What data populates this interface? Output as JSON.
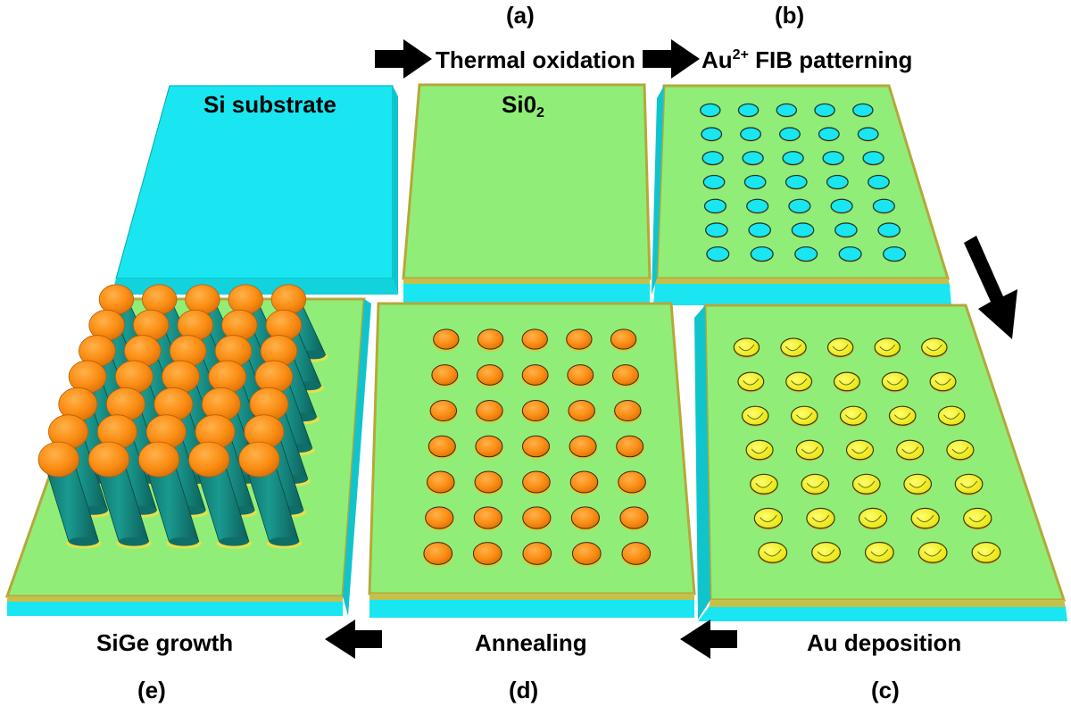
{
  "labels": {
    "step_a": "(a)",
    "step_b": "(b)",
    "step_c": "(c)",
    "step_d": "(d)",
    "step_e": "(e)",
    "thermal_oxidation": "Thermal oxidation",
    "fib_prefix": "Au",
    "fib_sup": "2+",
    "fib_suffix": " FIB patterning",
    "au_deposition": "Au deposition",
    "annealing": "Annealing",
    "sige_growth": "SiGe growth",
    "si_substrate": "Si substrate",
    "sio2_prefix": "Si0",
    "sio2_sub": "2"
  },
  "grid": {
    "rows": 7,
    "cols": 5
  },
  "colors": {
    "substrate": "#19e6f0",
    "substrate_side": "#10c4cc",
    "oxide": "#90ee78",
    "oxide_edge": "#b5a83a",
    "gold": "#f2f212",
    "catalyst": "#fb8c12",
    "nanowire": "#14847c",
    "arrow": "#000000"
  }
}
